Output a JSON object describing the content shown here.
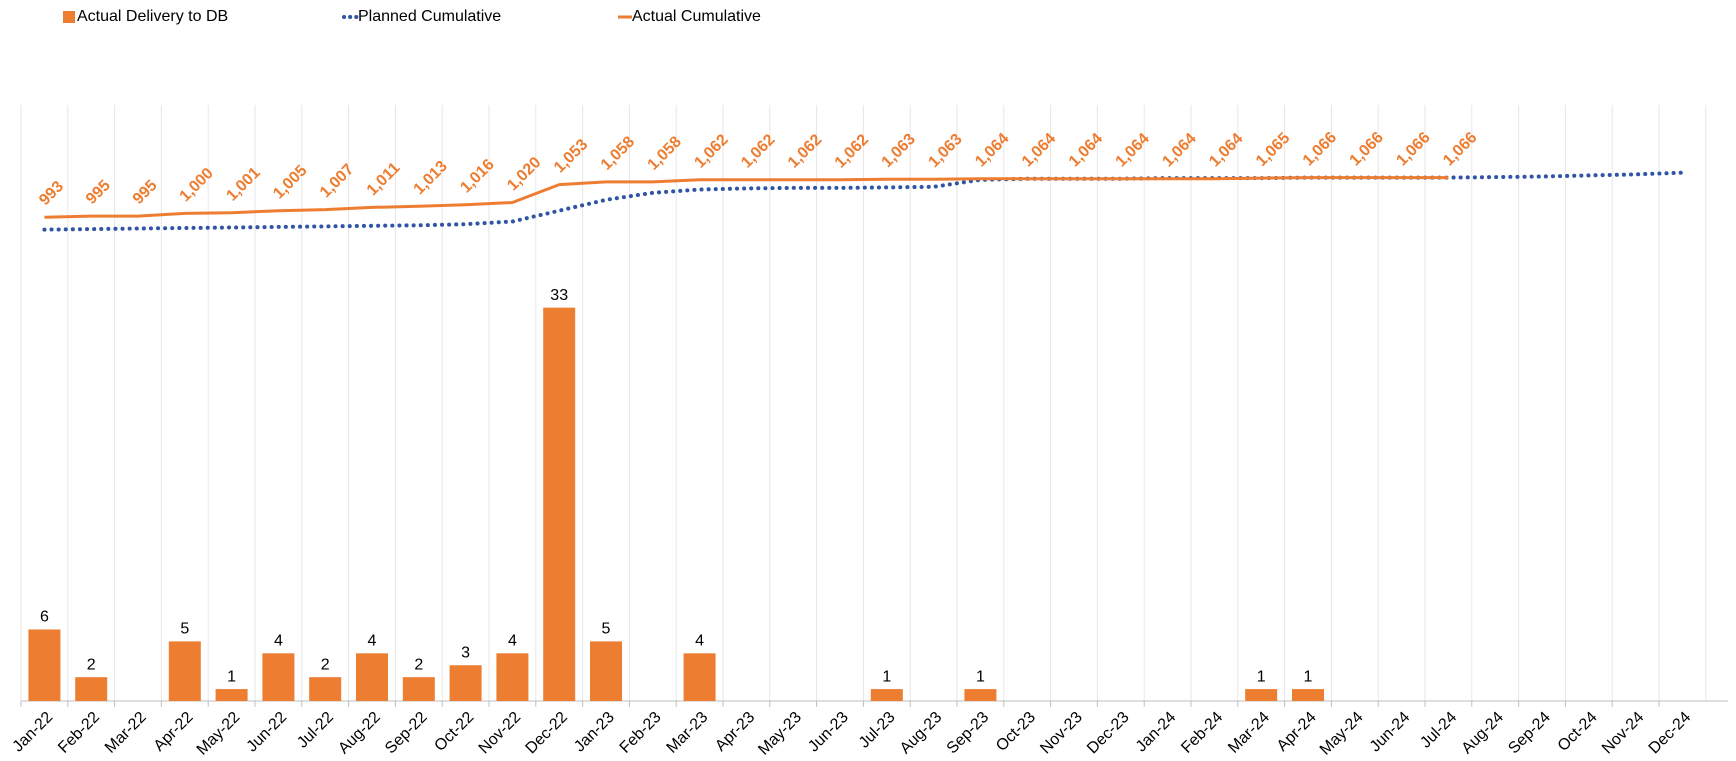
{
  "chart_data": {
    "type": "bar-line",
    "categories": [
      "Jan-22",
      "Feb-22",
      "Mar-22",
      "Apr-22",
      "May-22",
      "Jun-22",
      "Jul-22",
      "Aug-22",
      "Sep-22",
      "Oct-22",
      "Nov-22",
      "Dec-22",
      "Jan-23",
      "Feb-23",
      "Mar-23",
      "Apr-23",
      "May-23",
      "Jun-23",
      "Jul-23",
      "Aug-23",
      "Sep-23",
      "Oct-23",
      "Nov-23",
      "Dec-23",
      "Jan-24",
      "Feb-24",
      "Mar-24",
      "Apr-24",
      "May-24",
      "Jun-24",
      "Jul-24",
      "Aug-24",
      "Sep-24",
      "Oct-24",
      "Nov-24",
      "Dec-24"
    ],
    "ylim": [
      0,
      50
    ],
    "y2lim": [
      100,
      1200
    ],
    "grid": true,
    "series": [
      {
        "name": "Actual Delivery to DB",
        "type": "bar",
        "color": "#ed7d31",
        "values": [
          6,
          2,
          null,
          5,
          1,
          4,
          2,
          4,
          2,
          3,
          4,
          33,
          5,
          null,
          4,
          null,
          null,
          null,
          1,
          null,
          1,
          null,
          null,
          null,
          null,
          null,
          1,
          1,
          null,
          null,
          null,
          null,
          null,
          null,
          null,
          null
        ]
      },
      {
        "name": "Planned Cumulative",
        "type": "line",
        "style": "dotted",
        "axis": "y2",
        "color": "#2f55a4",
        "values": [
          970,
          971,
          972,
          973,
          974,
          975,
          976,
          977,
          978,
          980,
          985,
          1005,
          1025,
          1038,
          1044,
          1046,
          1047,
          1047,
          1048,
          1049,
          1062,
          1064,
          1064,
          1064,
          1065,
          1065,
          1065,
          1066,
          1066,
          1066,
          1066,
          1067,
          1068,
          1070,
          1072,
          1075
        ]
      },
      {
        "name": "Actual Cumulative",
        "type": "line",
        "style": "solid",
        "axis": "y2",
        "color": "#ed7d31",
        "values": [
          993,
          995,
          995,
          1000,
          1001,
          1005,
          1007,
          1011,
          1013,
          1016,
          1020,
          1053,
          1058,
          1058,
          1062,
          1062,
          1062,
          1062,
          1063,
          1063,
          1064,
          1064,
          1064,
          1064,
          1064,
          1064,
          1065,
          1066,
          1066,
          1066,
          1066,
          null,
          null,
          null,
          null,
          null
        ],
        "value_labels": [
          "993",
          "995",
          "995",
          "1,000",
          "1,001",
          "1,005",
          "1,007",
          "1,011",
          "1,013",
          "1,016",
          "1,020",
          "1,053",
          "1,058",
          "1,058",
          "1,062",
          "1,062",
          "1,062",
          "1,062",
          "1,063",
          "1,063",
          "1,064",
          "1,064",
          "1,064",
          "1,064",
          "1,064",
          "1,064",
          "1,065",
          "1,066",
          "1,066",
          "1,066",
          "1,066",
          null,
          null,
          null,
          null,
          null
        ]
      }
    ]
  }
}
